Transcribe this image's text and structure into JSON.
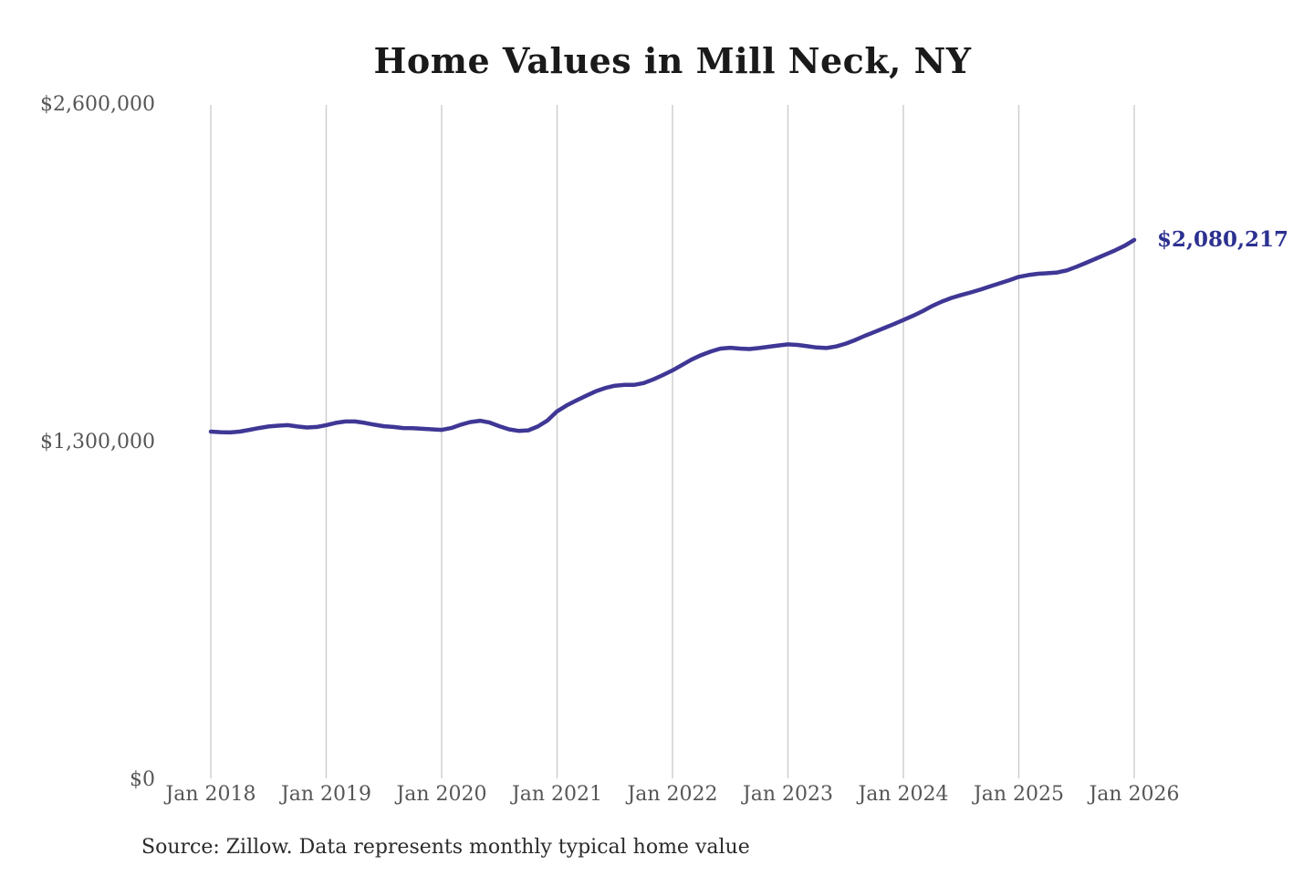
{
  "chart": {
    "title": "Home Values in Mill Neck, NY",
    "end_label": "$2,080,217",
    "source": "Source: Zillow. Data represents monthly typical home value",
    "colors": {
      "line": "#3f3795",
      "end_label": "#2d3190",
      "grid": "#cccccc",
      "tick_text": "#565656",
      "title_text": "#1a1a1a",
      "source_text": "#2b2b2b",
      "background": "#ffffff"
    }
  },
  "chart_data": {
    "type": "line",
    "title": "Home Values in Mill Neck, NY",
    "xlabel": "",
    "ylabel": "",
    "ylim": [
      0,
      2600000
    ],
    "grid": "vertical",
    "legend": "none",
    "x_tick_labels": [
      "Jan 2018",
      "Jan 2019",
      "Jan 2020",
      "Jan 2021",
      "Jan 2022",
      "Jan 2023",
      "Jan 2024",
      "Jan 2025",
      "Jan 2026"
    ],
    "y_ticks": [
      {
        "label": "$0",
        "value": 0
      },
      {
        "label": "$1,300,000",
        "value": 1300000
      },
      {
        "label": "$2,600,000",
        "value": 2600000
      }
    ],
    "end_annotation": {
      "text": "$2,080,217",
      "value": 2080217
    },
    "source": "Source: Zillow. Data represents monthly typical home value",
    "series": [
      {
        "name": "Monthly typical home value",
        "start": "Jan 2018",
        "interval": "monthly",
        "values": [
          1342000,
          1340000,
          1339000,
          1342000,
          1349000,
          1356000,
          1362000,
          1365000,
          1367000,
          1362000,
          1358000,
          1360000,
          1367000,
          1376000,
          1381000,
          1381000,
          1376000,
          1369000,
          1363000,
          1360000,
          1356000,
          1355000,
          1353000,
          1351000,
          1349000,
          1356000,
          1369000,
          1379000,
          1384000,
          1377000,
          1363000,
          1351000,
          1345000,
          1347000,
          1362000,
          1385000,
          1420000,
          1443000,
          1462000,
          1480000,
          1497000,
          1510000,
          1519000,
          1522000,
          1522000,
          1529000,
          1543000,
          1560000,
          1578000,
          1599000,
          1620000,
          1637000,
          1651000,
          1662000,
          1665000,
          1662000,
          1660000,
          1664000,
          1669000,
          1674000,
          1678000,
          1676000,
          1671000,
          1666000,
          1664000,
          1670000,
          1681000,
          1695000,
          1711000,
          1726000,
          1741000,
          1756000,
          1772000,
          1788000,
          1806000,
          1826000,
          1843000,
          1857000,
          1868000,
          1878000,
          1889000,
          1901000,
          1913000,
          1925000,
          1938000,
          1945000,
          1950000,
          1952000,
          1955000,
          1963000,
          1977000,
          1992000,
          2008000,
          2024000,
          2040000,
          2058000,
          2080217
        ]
      }
    ]
  }
}
